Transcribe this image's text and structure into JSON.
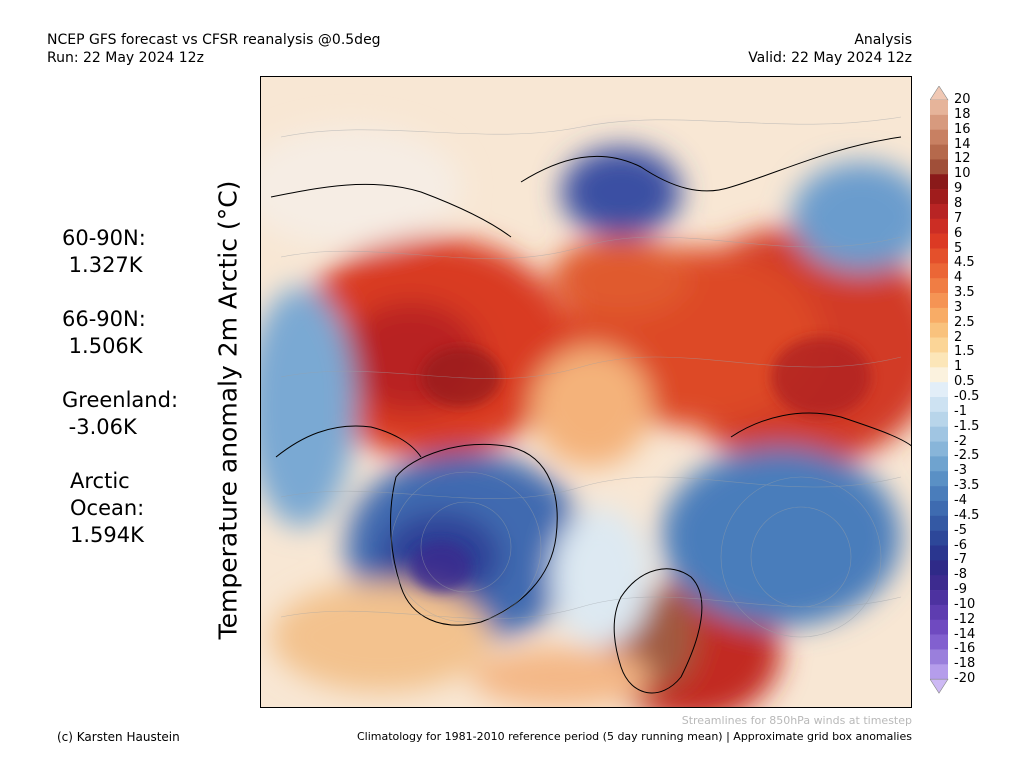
{
  "header": {
    "line1_left": "NCEP GFS forecast vs CFSR reanalysis @0.5deg",
    "line2_left": "Run: 22 May 2024 12z",
    "line1_right": "Analysis",
    "line2_right": "Valid: 22 May 2024 12z"
  },
  "ylabel": "Temperature anomaly 2m Arctic (°C)",
  "stats": [
    {
      "label": "60-90N:",
      "value": " 1.327K"
    },
    {
      "label": "66-90N:",
      "value": " 1.506K"
    },
    {
      "label": "Greenland:",
      "value": " -3.06K"
    },
    {
      "label": "Arctic\nOcean:",
      "value": "1.594K"
    }
  ],
  "colorbar": {
    "labels": [
      "20",
      "18",
      "16",
      "14",
      "12",
      "10",
      "9",
      "8",
      "7",
      "6",
      "5",
      "4.5",
      "4",
      "3.5",
      "3",
      "2.5",
      "2",
      "1.5",
      "1",
      "0.5",
      "-0.5",
      "-1",
      "-1.5",
      "-2",
      "-2.5",
      "-3",
      "-3.5",
      "-4",
      "-4.5",
      "-5",
      "-6",
      "-7",
      "-8",
      "-9",
      "-10",
      "-12",
      "-14",
      "-16",
      "-18",
      "-20"
    ],
    "colors": [
      "#f0c8b4",
      "#e6b49a",
      "#d79a7e",
      "#c88062",
      "#b5694c",
      "#a04f39",
      "#8a1a1a",
      "#a01c1c",
      "#b82424",
      "#cc2d24",
      "#dc3a24",
      "#e4502b",
      "#eb6636",
      "#f07d44",
      "#f59454",
      "#f8ac66",
      "#f9c27d",
      "#fbd597",
      "#fce6b8",
      "#fbf2de",
      "#e2eef8",
      "#cde2f2",
      "#b8d5ea",
      "#a0c5e2",
      "#88b5d9",
      "#6fa3cf",
      "#5a90c5",
      "#4a7dbb",
      "#3e6bb0",
      "#3459a4",
      "#2d4799",
      "#2a368f",
      "#2f2a88",
      "#3d2b8f",
      "#4d32a0",
      "#5e3db0",
      "#6f4ac0",
      "#8260cf",
      "#9a7fdc",
      "#b59deb",
      "#cdb9f4"
    ]
  },
  "footer": {
    "credit": "(c) Karsten Haustein",
    "climatology": "Climatology for 1981-2010 reference period (5 day running mean) | Approximate grid box anomalies",
    "streamlines": "Streamlines for 850hPa winds at timestep"
  }
}
